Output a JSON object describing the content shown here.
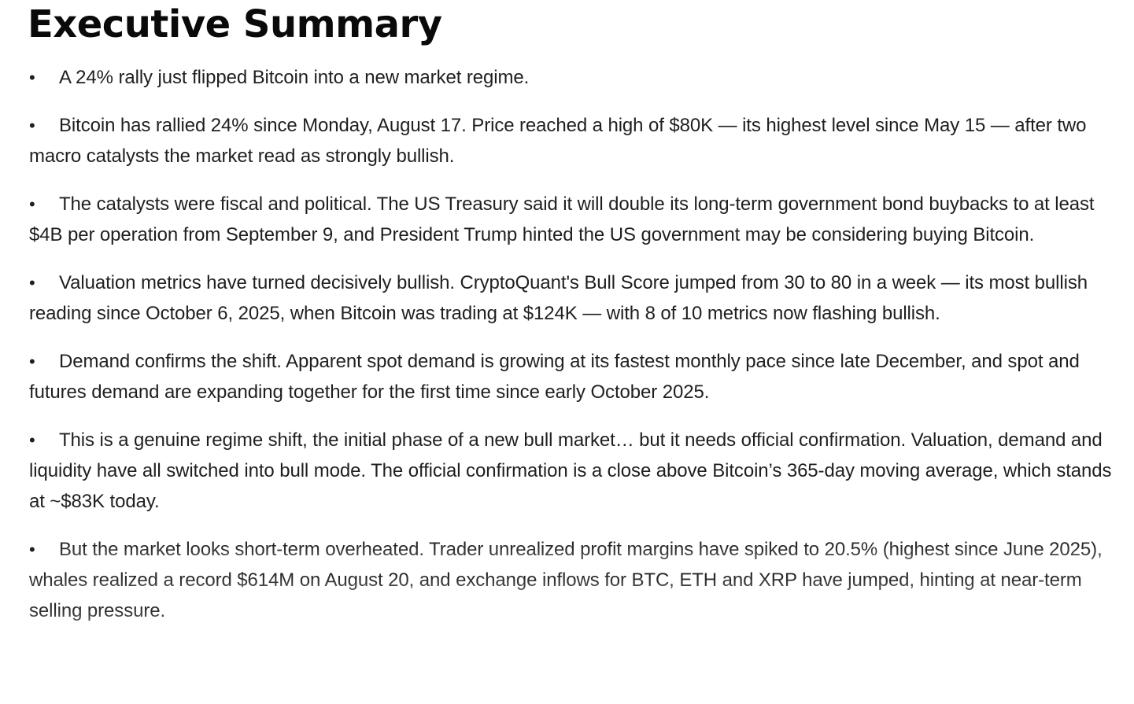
{
  "document": {
    "title": "Executive Summary",
    "bullet_glyph": "•",
    "bullets": [
      "A 24% rally just flipped Bitcoin into a new market regime.",
      "Bitcoin has rallied 24% since Monday, August 17. Price reached a high of $80K — its highest level since May 15 — after two macro catalysts the market read as strongly bullish.",
      "The catalysts were fiscal and political. The US Treasury said it will double its long-term government bond buybacks to at least $4B per operation from September 9, and President Trump hinted the US government may be considering buying Bitcoin.",
      "Valuation metrics have turned decisively bullish. CryptoQuant's Bull Score jumped from 30 to 80 in a week — its most bullish reading since October 6, 2025, when Bitcoin was trading at $124K — with 8 of 10 metrics now flashing bullish.",
      "Demand confirms the shift. Apparent spot demand is growing at its fastest monthly pace since late December, and spot and futures demand are expanding together for the first time since early October 2025.",
      "This is a genuine regime shift, the initial phase of a new bull market… but it needs official confirmation. Valuation, demand and liquidity have all switched into bull mode. The official confirmation is a close above Bitcoin’s 365-day moving average, which stands at ~$83K today.",
      "But the market looks short-term overheated. Trader unrealized profit margins have spiked to 20.5% (highest since June 2025), whales realized a record $614M on August 20, and exchange inflows for BTC, ETH and XRP have jumped, hinting at near-term selling pressure."
    ]
  }
}
